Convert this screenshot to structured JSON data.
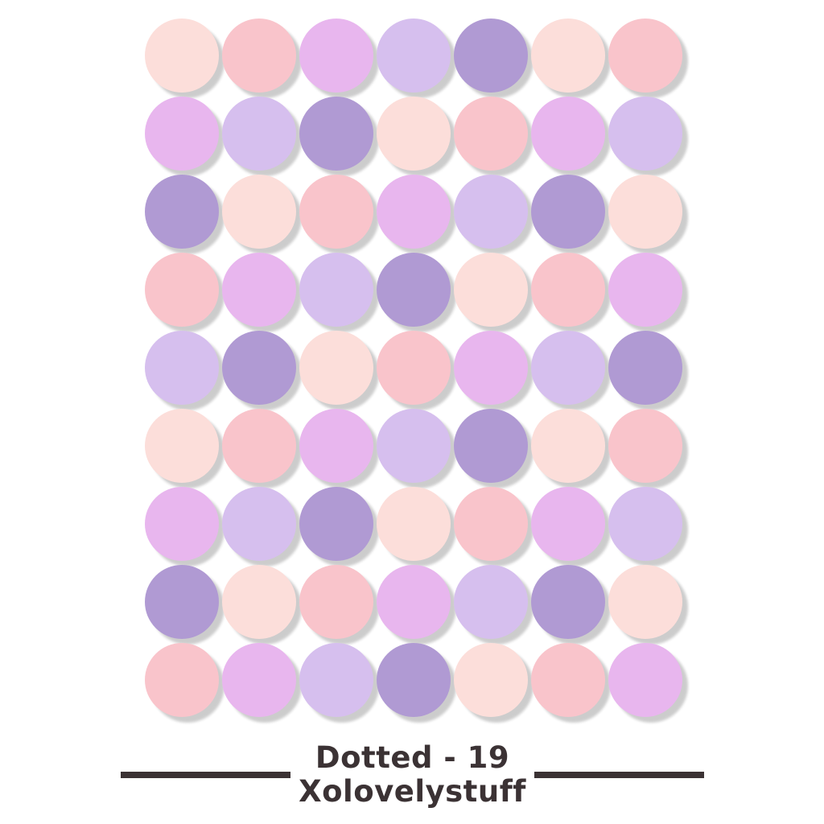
{
  "palette": {
    "blush": "#fcdeda",
    "pink": "#f9c4cb",
    "lilac": "#e8b6ee",
    "lavender": "#d6bfee",
    "purple": "#b09ad3"
  },
  "shadow_color": "#c9c9c9",
  "text_color": "#3b3234",
  "grid": {
    "columns": 7,
    "rows": 9,
    "dot_count": 63,
    "pattern_cycle": [
      "blush",
      "pink",
      "lilac",
      "lavender",
      "purple"
    ],
    "dots": [
      "blush",
      "pink",
      "lilac",
      "lavender",
      "purple",
      "blush",
      "pink",
      "lilac",
      "lavender",
      "purple",
      "blush",
      "pink",
      "lilac",
      "lavender",
      "purple",
      "blush",
      "pink",
      "lilac",
      "lavender",
      "purple",
      "blush",
      "pink",
      "lilac",
      "lavender",
      "purple",
      "blush",
      "pink",
      "lilac",
      "lavender",
      "purple",
      "blush",
      "pink",
      "lilac",
      "lavender",
      "purple",
      "blush",
      "pink",
      "lilac",
      "lavender",
      "purple",
      "blush",
      "pink",
      "lilac",
      "lavender",
      "purple",
      "blush",
      "pink",
      "lilac",
      "lavender",
      "purple",
      "blush",
      "pink",
      "lilac",
      "lavender",
      "purple",
      "blush",
      "pink",
      "lilac",
      "lavender",
      "purple",
      "blush",
      "pink",
      "lilac"
    ]
  },
  "footer": {
    "title": "Dotted - 19",
    "brand": "Xolovelystuff"
  }
}
